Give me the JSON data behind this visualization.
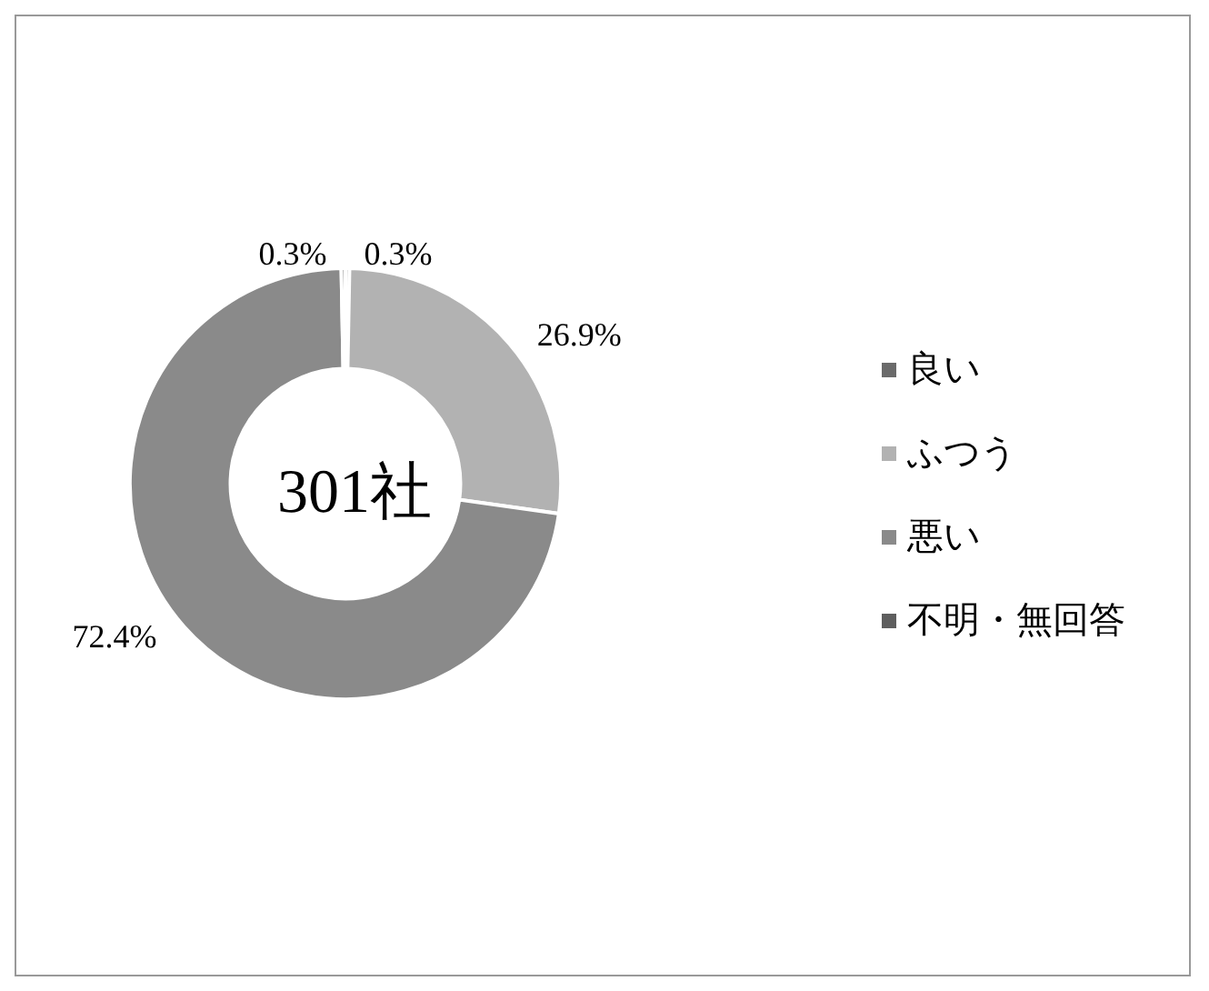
{
  "chart_data": {
    "type": "donut",
    "categories": [
      "良い",
      "ふつう",
      "悪い",
      "不明・無回答"
    ],
    "values": [
      0.3,
      26.9,
      72.4,
      0.3
    ],
    "colors": [
      "#6a6a6a",
      "#b2b2b2",
      "#8a8a8a",
      "#5e5e5e"
    ],
    "value_labels": [
      "0.3%",
      "26.9%",
      "72.4%",
      "0.3%"
    ],
    "annotations": [
      "301社"
    ],
    "legend": "right"
  }
}
